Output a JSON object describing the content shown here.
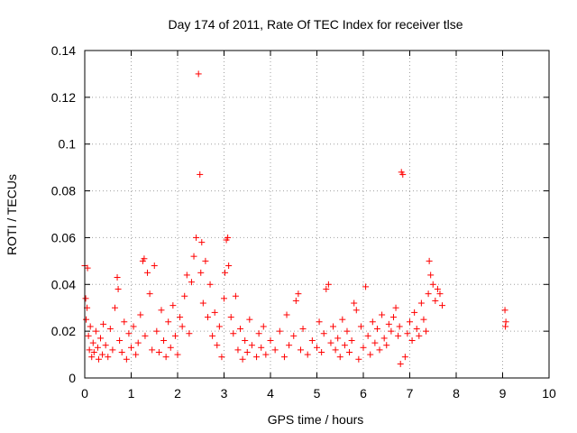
{
  "chart_data": {
    "type": "scatter",
    "title": "Day 174 of 2011, Rate Of TEC Index for receiver tlse",
    "xlabel": "GPS time / hours",
    "ylabel": "ROTI / TECUs",
    "xlim": [
      0,
      10
    ],
    "ylim": [
      0,
      0.14
    ],
    "xticks": [
      0,
      1,
      2,
      3,
      4,
      5,
      6,
      7,
      8,
      9,
      10
    ],
    "yticks": [
      0,
      0.02,
      0.04,
      0.06,
      0.08,
      0.1,
      0.12,
      0.14
    ],
    "xtick_labels": [
      "0",
      "1",
      "2",
      "3",
      "4",
      "5",
      "6",
      "7",
      "8",
      "9",
      "10"
    ],
    "ytick_labels": [
      "0",
      "0.02",
      "0.04",
      "0.06",
      "0.08",
      "0.1",
      "0.12",
      "0.14"
    ],
    "grid": true,
    "marker": "+",
    "color": "#ff0000",
    "series": [
      {
        "name": "ROTI",
        "x": [
          0.0,
          0.02,
          0.03,
          0.05,
          0.06,
          0.08,
          0.1,
          0.12,
          0.15,
          0.18,
          0.2,
          0.24,
          0.28,
          0.3,
          0.34,
          0.38,
          0.4,
          0.45,
          0.5,
          0.55,
          0.6,
          0.65,
          0.7,
          0.72,
          0.75,
          0.8,
          0.85,
          0.9,
          0.95,
          1.0,
          1.05,
          1.1,
          1.15,
          1.2,
          1.25,
          1.28,
          1.3,
          1.35,
          1.4,
          1.45,
          1.5,
          1.55,
          1.6,
          1.65,
          1.7,
          1.75,
          1.8,
          1.85,
          1.9,
          1.95,
          2.0,
          2.05,
          2.1,
          2.15,
          2.2,
          2.25,
          2.3,
          2.35,
          2.4,
          2.45,
          2.48,
          2.5,
          2.52,
          2.55,
          2.6,
          2.65,
          2.7,
          2.75,
          2.8,
          2.85,
          2.9,
          2.95,
          3.0,
          3.02,
          3.05,
          3.08,
          3.1,
          3.15,
          3.2,
          3.25,
          3.3,
          3.35,
          3.4,
          3.45,
          3.5,
          3.55,
          3.6,
          3.7,
          3.75,
          3.8,
          3.85,
          3.9,
          4.0,
          4.1,
          4.2,
          4.3,
          4.35,
          4.4,
          4.5,
          4.55,
          4.6,
          4.65,
          4.7,
          4.8,
          4.9,
          5.0,
          5.05,
          5.1,
          5.15,
          5.2,
          5.25,
          5.3,
          5.35,
          5.4,
          5.45,
          5.5,
          5.55,
          5.6,
          5.65,
          5.7,
          5.75,
          5.8,
          5.85,
          5.9,
          5.95,
          6.0,
          6.05,
          6.1,
          6.15,
          6.2,
          6.25,
          6.3,
          6.35,
          6.4,
          6.45,
          6.5,
          6.55,
          6.6,
          6.65,
          6.7,
          6.75,
          6.78,
          6.8,
          6.82,
          6.85,
          6.9,
          6.95,
          7.0,
          7.05,
          7.1,
          7.15,
          7.2,
          7.25,
          7.3,
          7.35,
          7.4,
          7.42,
          7.45,
          7.5,
          7.55,
          7.6,
          7.65,
          7.7,
          9.05,
          9.06,
          9.07
        ],
        "y": [
          0.048,
          0.034,
          0.025,
          0.03,
          0.047,
          0.018,
          0.012,
          0.022,
          0.009,
          0.015,
          0.011,
          0.02,
          0.013,
          0.008,
          0.017,
          0.01,
          0.023,
          0.014,
          0.009,
          0.021,
          0.012,
          0.03,
          0.043,
          0.038,
          0.016,
          0.011,
          0.024,
          0.008,
          0.019,
          0.013,
          0.022,
          0.01,
          0.015,
          0.027,
          0.05,
          0.051,
          0.018,
          0.045,
          0.036,
          0.012,
          0.048,
          0.02,
          0.011,
          0.029,
          0.016,
          0.009,
          0.024,
          0.013,
          0.031,
          0.018,
          0.01,
          0.026,
          0.022,
          0.035,
          0.044,
          0.019,
          0.041,
          0.052,
          0.06,
          0.13,
          0.087,
          0.045,
          0.058,
          0.032,
          0.05,
          0.026,
          0.04,
          0.018,
          0.028,
          0.014,
          0.022,
          0.009,
          0.034,
          0.045,
          0.059,
          0.06,
          0.048,
          0.026,
          0.019,
          0.035,
          0.012,
          0.021,
          0.008,
          0.016,
          0.011,
          0.025,
          0.014,
          0.009,
          0.019,
          0.013,
          0.022,
          0.01,
          0.016,
          0.012,
          0.02,
          0.009,
          0.027,
          0.014,
          0.018,
          0.033,
          0.036,
          0.012,
          0.021,
          0.01,
          0.016,
          0.013,
          0.024,
          0.011,
          0.019,
          0.038,
          0.04,
          0.015,
          0.022,
          0.012,
          0.017,
          0.009,
          0.025,
          0.014,
          0.02,
          0.011,
          0.016,
          0.032,
          0.029,
          0.008,
          0.022,
          0.013,
          0.039,
          0.018,
          0.01,
          0.024,
          0.015,
          0.021,
          0.012,
          0.027,
          0.017,
          0.014,
          0.023,
          0.02,
          0.026,
          0.03,
          0.018,
          0.022,
          0.006,
          0.088,
          0.087,
          0.009,
          0.019,
          0.024,
          0.016,
          0.028,
          0.021,
          0.018,
          0.032,
          0.025,
          0.02,
          0.036,
          0.05,
          0.044,
          0.04,
          0.033,
          0.038,
          0.036,
          0.031,
          0.029,
          0.022,
          0.024
        ]
      }
    ]
  }
}
